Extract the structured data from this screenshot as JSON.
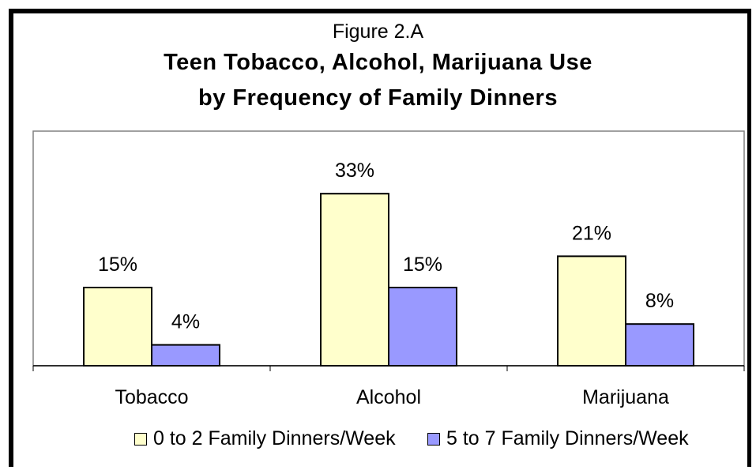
{
  "figure_label": "Figure 2.A",
  "title_lines": [
    "Teen Tobacco, Alcohol, Marijuana Use",
    "by Frequency of Family Dinners"
  ],
  "colors": {
    "series_0": "#FFFFCC",
    "series_1": "#9999FF",
    "plot_border": "#808080",
    "frame": "#000000"
  },
  "chart_data": {
    "type": "bar",
    "title": "Teen Tobacco, Alcohol, Marijuana Use by Frequency of Family Dinners",
    "categories": [
      "Tobacco",
      "Alcohol",
      "Marijuana"
    ],
    "series": [
      {
        "name": "0 to 2 Family Dinners/Week",
        "values": [
          15,
          33,
          21
        ],
        "labels": [
          "15%",
          "33%",
          "21%"
        ]
      },
      {
        "name": "5 to 7 Family Dinners/Week",
        "values": [
          4,
          15,
          8
        ],
        "labels": [
          "4%",
          "15%",
          "8%"
        ]
      }
    ],
    "value_unit": "%",
    "ylim": [
      0,
      42
    ],
    "grid": false,
    "legend_position": "bottom"
  }
}
